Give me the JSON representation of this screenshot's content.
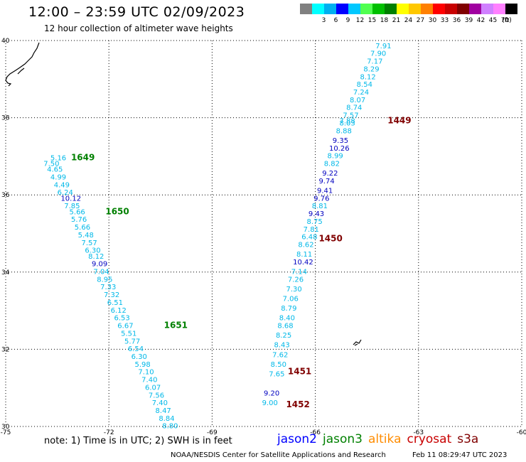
{
  "header": {
    "title": "12:00 – 23:59 UTC 02/09/2023",
    "subtitle": "12 hour collection of altimeter wave heights"
  },
  "legend": {
    "unit": "(ft)",
    "bins": [
      {
        "label": "",
        "color": "#808080"
      },
      {
        "label": "3",
        "color": "#00ffff"
      },
      {
        "label": "6",
        "color": "#00b0f0"
      },
      {
        "label": "9",
        "color": "#0000ff"
      },
      {
        "label": "12",
        "color": "#00c8ff"
      },
      {
        "label": "15",
        "color": "#50ff50"
      },
      {
        "label": "18",
        "color": "#00c000"
      },
      {
        "label": "21",
        "color": "#008000"
      },
      {
        "label": "24",
        "color": "#ffff00"
      },
      {
        "label": "27",
        "color": "#ffc800"
      },
      {
        "label": "30",
        "color": "#ff8000"
      },
      {
        "label": "33",
        "color": "#ff0000"
      },
      {
        "label": "36",
        "color": "#c80000"
      },
      {
        "label": "39",
        "color": "#800000"
      },
      {
        "label": "42",
        "color": "#a000a0"
      },
      {
        "label": "45",
        "color": "#d080ff"
      },
      {
        "label": "70",
        "color": "#ff80ff"
      },
      {
        "label": "",
        "color": "#000000"
      }
    ]
  },
  "chart_data": {
    "type": "scatter",
    "xlim": [
      -75,
      -60
    ],
    "ylim": [
      30,
      40
    ],
    "x_ticks": [
      "-75",
      "-72",
      "-69",
      "-66",
      "-63",
      "-60"
    ],
    "y_ticks": [
      "30",
      "32",
      "34",
      "36",
      "38",
      "40"
    ],
    "grid": true,
    "track_colors": {
      "cyan": "#00b8e8",
      "blue": "#0000c0",
      "green": "#008000",
      "maroon": "#800000"
    },
    "tracks": [
      {
        "points": [
          {
            "lon": -73.7,
            "lat": 36.9,
            "v": "5.16",
            "c": "cyan"
          },
          {
            "lon": -73.9,
            "lat": 36.75,
            "v": "7.50",
            "c": "cyan"
          },
          {
            "lon": -73.8,
            "lat": 36.6,
            "v": "4.65",
            "c": "cyan"
          },
          {
            "lon": -73.7,
            "lat": 36.4,
            "v": "4.99",
            "c": "cyan"
          },
          {
            "lon": -73.6,
            "lat": 36.2,
            "v": "4.49",
            "c": "cyan"
          },
          {
            "lon": -73.5,
            "lat": 36.0,
            "v": "6.24",
            "c": "cyan"
          },
          {
            "lon": -73.4,
            "lat": 35.85,
            "v": "10.12",
            "c": "blue"
          },
          {
            "lon": -73.3,
            "lat": 35.65,
            "v": "7.85",
            "c": "cyan"
          },
          {
            "lon": -73.15,
            "lat": 35.5,
            "v": "5.66",
            "c": "cyan"
          },
          {
            "lon": -73.1,
            "lat": 35.3,
            "v": "5.76",
            "c": "cyan"
          },
          {
            "lon": -73.0,
            "lat": 35.1,
            "v": "5.66",
            "c": "cyan"
          },
          {
            "lon": -72.9,
            "lat": 34.9,
            "v": "5.48",
            "c": "cyan"
          },
          {
            "lon": -72.8,
            "lat": 34.7,
            "v": "7.57",
            "c": "cyan"
          },
          {
            "lon": -72.7,
            "lat": 34.5,
            "v": "6.30",
            "c": "cyan"
          },
          {
            "lon": -72.6,
            "lat": 34.35,
            "v": "8.12",
            "c": "cyan"
          },
          {
            "lon": -72.5,
            "lat": 34.15,
            "v": "9.09",
            "c": "blue"
          },
          {
            "lon": -72.45,
            "lat": 33.95,
            "v": "7.04",
            "c": "cyan"
          },
          {
            "lon": -72.35,
            "lat": 33.75,
            "v": "8.95",
            "c": "cyan"
          },
          {
            "lon": -72.25,
            "lat": 33.55,
            "v": "7.33",
            "c": "cyan"
          },
          {
            "lon": -72.15,
            "lat": 33.35,
            "v": "7.32",
            "c": "cyan"
          },
          {
            "lon": -72.05,
            "lat": 33.15,
            "v": "6.51",
            "c": "cyan"
          },
          {
            "lon": -71.95,
            "lat": 32.95,
            "v": "6.12",
            "c": "cyan"
          },
          {
            "lon": -71.85,
            "lat": 32.75,
            "v": "6.53",
            "c": "cyan"
          },
          {
            "lon": -71.75,
            "lat": 32.55,
            "v": "6.67",
            "c": "cyan"
          },
          {
            "lon": -71.65,
            "lat": 32.35,
            "v": "5.51",
            "c": "cyan"
          },
          {
            "lon": -71.55,
            "lat": 32.15,
            "v": "5.77",
            "c": "cyan"
          },
          {
            "lon": -71.45,
            "lat": 31.95,
            "v": "6.54",
            "c": "cyan"
          },
          {
            "lon": -71.35,
            "lat": 31.75,
            "v": "6.30",
            "c": "cyan"
          },
          {
            "lon": -71.25,
            "lat": 31.55,
            "v": "5.98",
            "c": "cyan"
          },
          {
            "lon": -71.15,
            "lat": 31.35,
            "v": "7.10",
            "c": "cyan"
          },
          {
            "lon": -71.05,
            "lat": 31.15,
            "v": "7.40",
            "c": "cyan"
          },
          {
            "lon": -70.95,
            "lat": 30.95,
            "v": "6.07",
            "c": "cyan"
          },
          {
            "lon": -70.85,
            "lat": 30.75,
            "v": "7.56",
            "c": "cyan"
          },
          {
            "lon": -70.75,
            "lat": 30.55,
            "v": "7.40",
            "c": "cyan"
          },
          {
            "lon": -70.65,
            "lat": 30.35,
            "v": "8.47",
            "c": "cyan"
          },
          {
            "lon": -70.55,
            "lat": 30.15,
            "v": "8.84",
            "c": "cyan"
          },
          {
            "lon": -70.45,
            "lat": 29.95,
            "v": "8.80",
            "c": "cyan"
          }
        ],
        "labels": [
          {
            "lon": -73.1,
            "lat": 36.9,
            "text": "1649",
            "c": "green"
          },
          {
            "lon": -72.1,
            "lat": 35.5,
            "text": "1650",
            "c": "green"
          },
          {
            "lon": -70.4,
            "lat": 32.55,
            "text": "1651",
            "c": "green"
          }
        ]
      },
      {
        "points": [
          {
            "lon": -64.25,
            "lat": 39.8,
            "v": "7.91",
            "c": "cyan"
          },
          {
            "lon": -64.4,
            "lat": 39.6,
            "v": "7.90",
            "c": "cyan"
          },
          {
            "lon": -64.5,
            "lat": 39.4,
            "v": "7.17",
            "c": "cyan"
          },
          {
            "lon": -64.6,
            "lat": 39.2,
            "v": "8.29",
            "c": "cyan"
          },
          {
            "lon": -64.7,
            "lat": 39.0,
            "v": "8.12",
            "c": "cyan"
          },
          {
            "lon": -64.8,
            "lat": 38.8,
            "v": "8.54",
            "c": "cyan"
          },
          {
            "lon": -64.9,
            "lat": 38.6,
            "v": "7.24",
            "c": "cyan"
          },
          {
            "lon": -65.0,
            "lat": 38.4,
            "v": "8.07",
            "c": "cyan"
          },
          {
            "lon": -65.1,
            "lat": 38.2,
            "v": "8.74",
            "c": "cyan"
          },
          {
            "lon": -65.2,
            "lat": 38.0,
            "v": "7.57",
            "c": "cyan"
          },
          {
            "lon": -65.3,
            "lat": 37.85,
            "v": "7.88",
            "c": "cyan"
          },
          {
            "lon": -65.3,
            "lat": 37.8,
            "v": "8.03",
            "c": "cyan"
          },
          {
            "lon": -65.4,
            "lat": 37.6,
            "v": "8.88",
            "c": "cyan"
          },
          {
            "lon": -65.5,
            "lat": 37.35,
            "v": "9.35",
            "c": "blue"
          },
          {
            "lon": -65.6,
            "lat": 37.15,
            "v": "10.26",
            "c": "blue"
          },
          {
            "lon": -65.65,
            "lat": 36.95,
            "v": "8.99",
            "c": "cyan"
          },
          {
            "lon": -65.75,
            "lat": 36.75,
            "v": "8.82",
            "c": "cyan"
          },
          {
            "lon": -65.8,
            "lat": 36.5,
            "v": "9.22",
            "c": "blue"
          },
          {
            "lon": -65.9,
            "lat": 36.3,
            "v": "9.74",
            "c": "blue"
          },
          {
            "lon": -65.95,
            "lat": 36.05,
            "v": "9.41",
            "c": "blue"
          },
          {
            "lon": -66.05,
            "lat": 35.85,
            "v": "9.76",
            "c": "blue"
          },
          {
            "lon": -66.1,
            "lat": 35.65,
            "v": "8.81",
            "c": "cyan"
          },
          {
            "lon": -66.2,
            "lat": 35.45,
            "v": "9.43",
            "c": "blue"
          },
          {
            "lon": -66.25,
            "lat": 35.25,
            "v": "8.75",
            "c": "cyan"
          },
          {
            "lon": -66.35,
            "lat": 35.05,
            "v": "7.81",
            "c": "cyan"
          },
          {
            "lon": -66.4,
            "lat": 34.85,
            "v": "6.48",
            "c": "cyan"
          },
          {
            "lon": -66.5,
            "lat": 34.65,
            "v": "8.62",
            "c": "cyan"
          },
          {
            "lon": -66.55,
            "lat": 34.4,
            "v": "8.11",
            "c": "cyan"
          },
          {
            "lon": -66.65,
            "lat": 34.2,
            "v": "10.42",
            "c": "blue"
          },
          {
            "lon": -66.7,
            "lat": 33.95,
            "v": "7.14",
            "c": "cyan"
          },
          {
            "lon": -66.8,
            "lat": 33.75,
            "v": "7.26",
            "c": "cyan"
          },
          {
            "lon": -66.85,
            "lat": 33.5,
            "v": "7.30",
            "c": "cyan"
          },
          {
            "lon": -66.95,
            "lat": 33.25,
            "v": "7.06",
            "c": "cyan"
          },
          {
            "lon": -67.0,
            "lat": 33.0,
            "v": "8.79",
            "c": "cyan"
          },
          {
            "lon": -67.05,
            "lat": 32.75,
            "v": "8.40",
            "c": "cyan"
          },
          {
            "lon": -67.1,
            "lat": 32.55,
            "v": "8.68",
            "c": "cyan"
          },
          {
            "lon": -67.15,
            "lat": 32.3,
            "v": "8.25",
            "c": "cyan"
          },
          {
            "lon": -67.2,
            "lat": 32.05,
            "v": "8.43",
            "c": "cyan"
          },
          {
            "lon": -67.25,
            "lat": 31.8,
            "v": "7.62",
            "c": "cyan"
          },
          {
            "lon": -67.3,
            "lat": 31.55,
            "v": "8.50",
            "c": "cyan"
          },
          {
            "lon": -67.35,
            "lat": 31.3,
            "v": "7.65",
            "c": "cyan"
          },
          {
            "lon": -67.5,
            "lat": 30.8,
            "v": "9.20",
            "c": "blue"
          },
          {
            "lon": -67.55,
            "lat": 30.55,
            "v": "9.00",
            "c": "cyan"
          }
        ],
        "labels": [
          {
            "lon": -63.9,
            "lat": 37.85,
            "text": "1449",
            "c": "maroon"
          },
          {
            "lon": -65.9,
            "lat": 34.8,
            "text": "1450",
            "c": "maroon"
          },
          {
            "lon": -66.8,
            "lat": 31.35,
            "text": "1451",
            "c": "maroon"
          },
          {
            "lon": -66.85,
            "lat": 30.5,
            "text": "1452",
            "c": "maroon"
          }
        ]
      }
    ]
  },
  "footer": {
    "note": "note:  1) Time is in UTC;  2) SWH is in feet",
    "satellites": [
      {
        "name": "jason2",
        "color": "#0000ff"
      },
      {
        "name": "jason3",
        "color": "#008000"
      },
      {
        "name": "altika",
        "color": "#ff8c00"
      },
      {
        "name": "cryosat",
        "color": "#c80000"
      },
      {
        "name": "s3a",
        "color": "#800000"
      }
    ],
    "credit": "NOAA/NESDIS Center for Satellite Applications and Research",
    "timestamp": "Feb 11 08:29:47 UTC 2023"
  }
}
